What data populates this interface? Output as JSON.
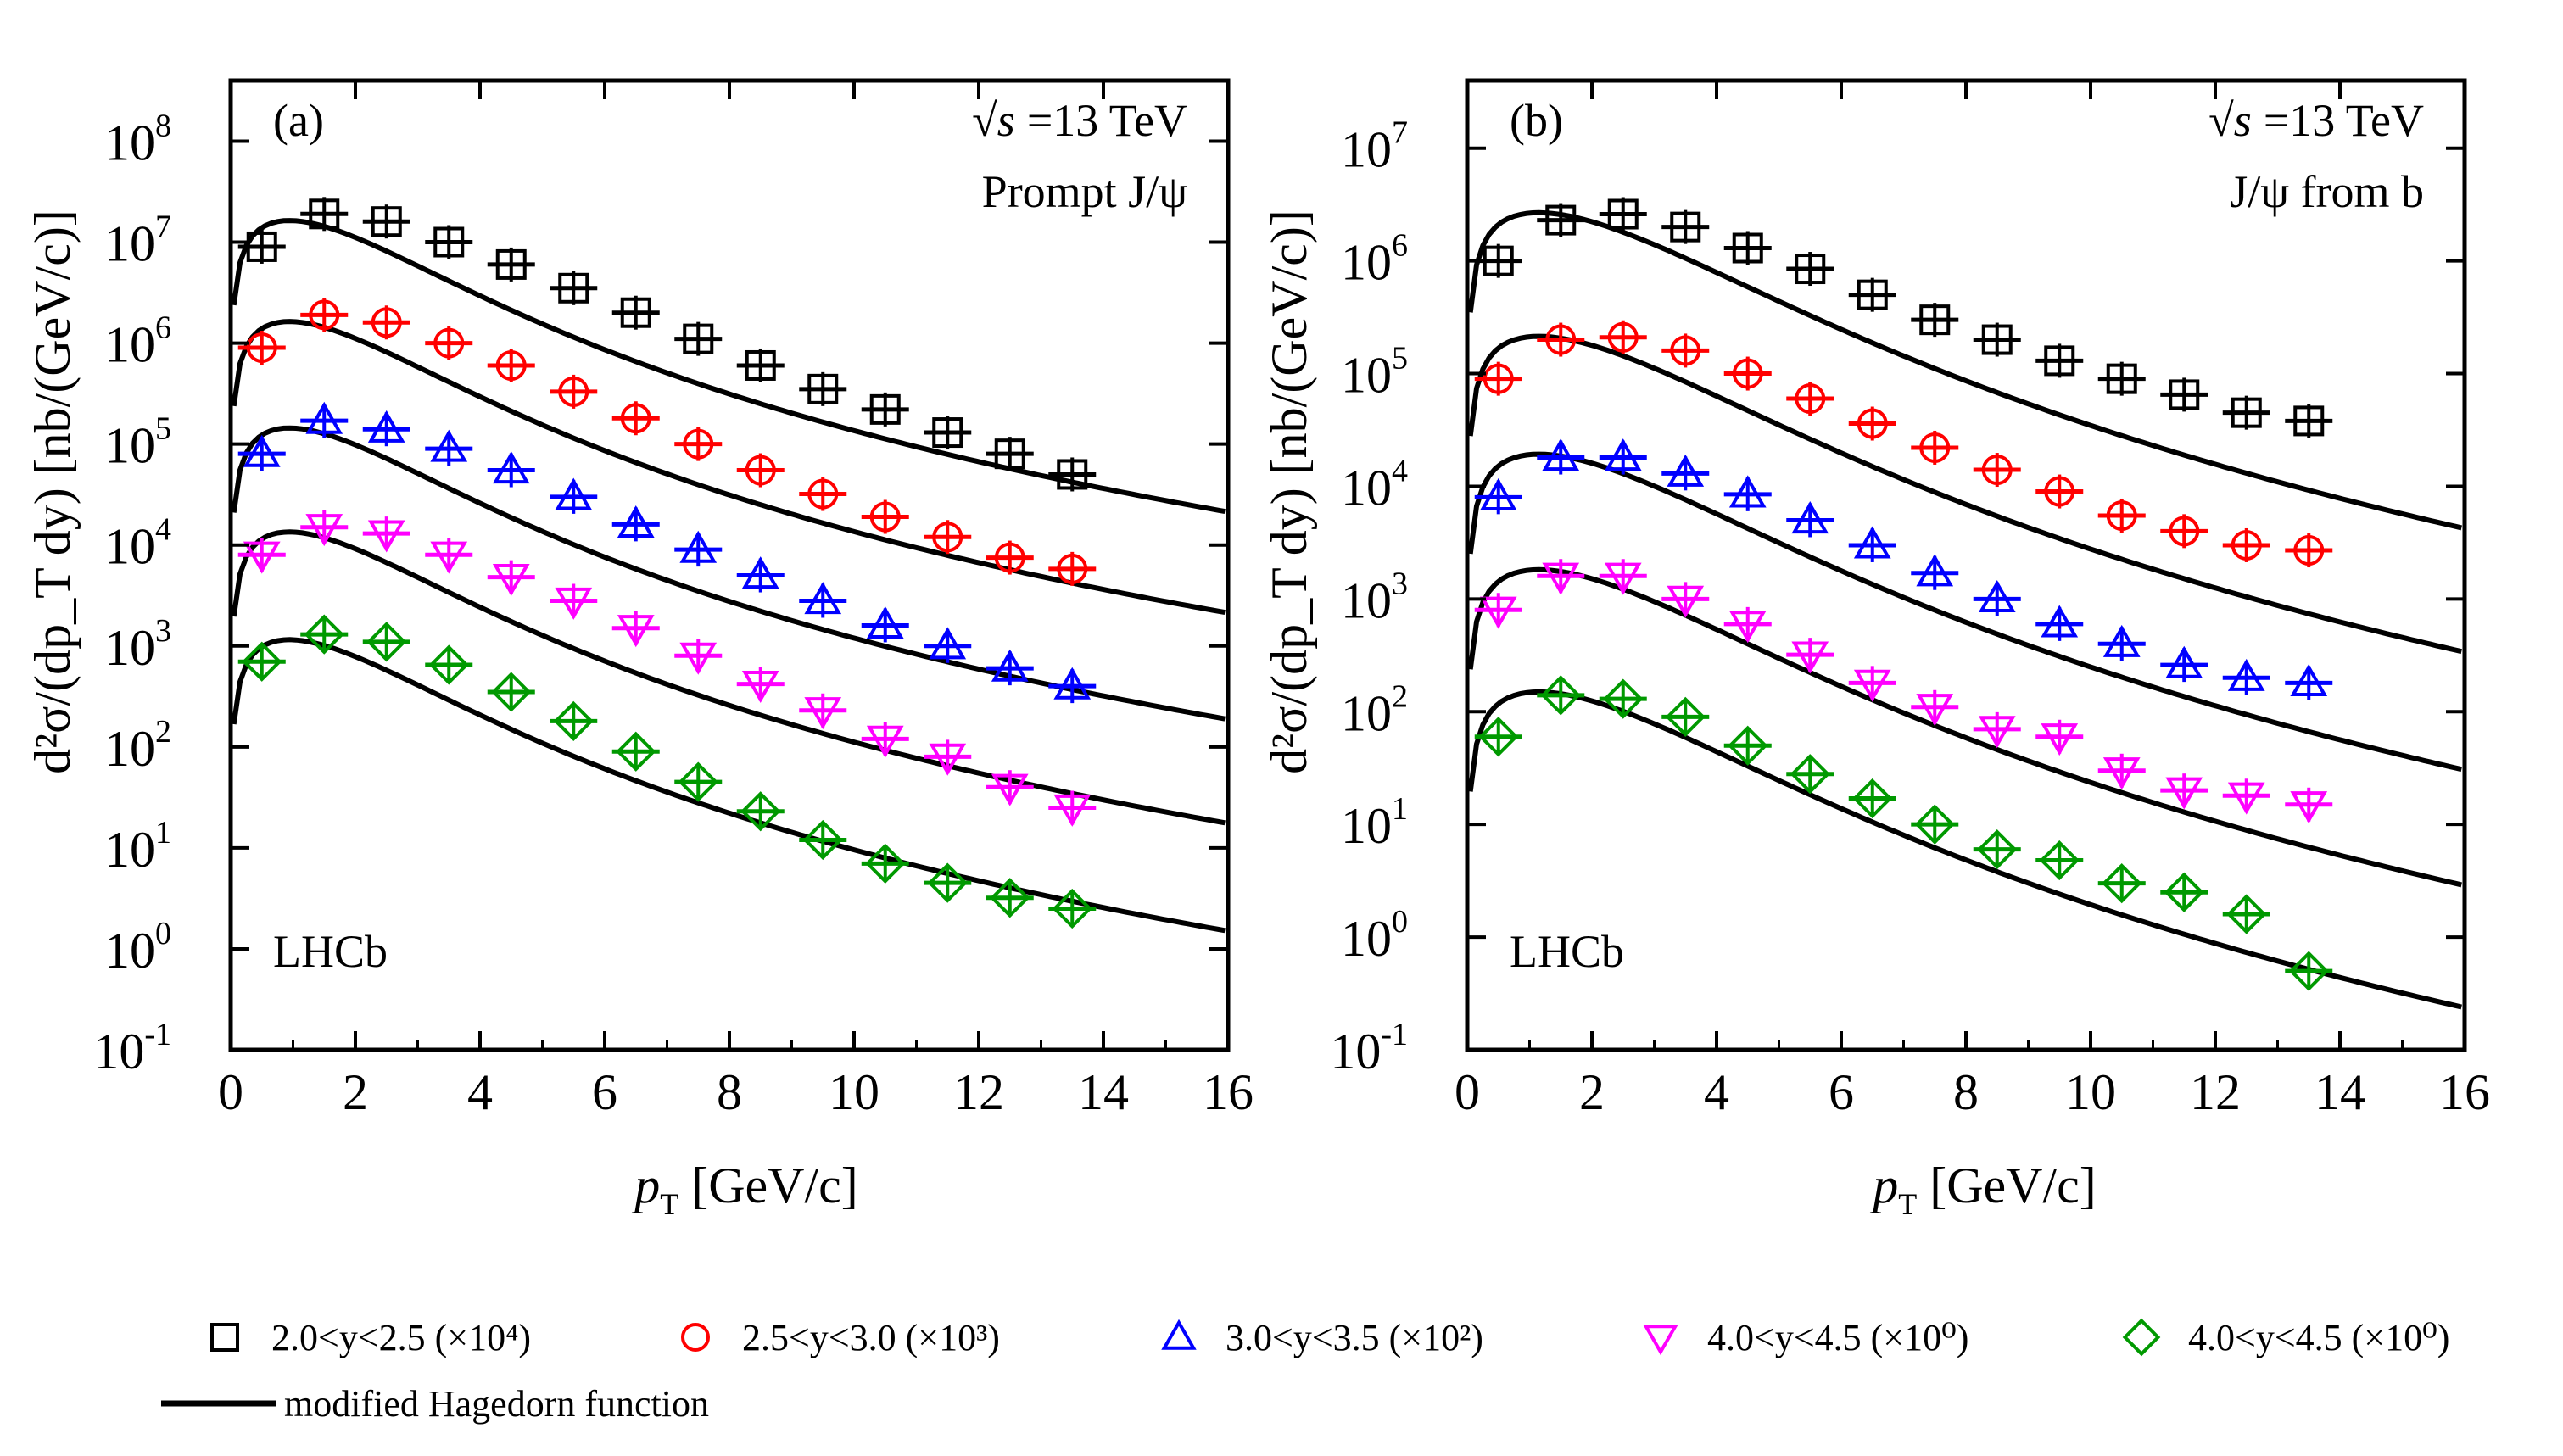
{
  "figure": {
    "legend": {
      "fit_label": "modified Hagedorn function"
    }
  },
  "chart_data": [
    {
      "type": "scatter",
      "panel_label": "(a)",
      "energy_label": "√s =13 TeV",
      "energy_symbol": "√s",
      "energy_value": "=13 TeV",
      "subtitle": "Prompt J/ψ",
      "experiment": "LHCb",
      "xlabel": "p_T [GeV/c]",
      "xlabel_main": "p",
      "xlabel_sub": "T",
      "xlabel_unit": " [GeV/c]",
      "ylabel": "d²σ/(dp_T dy) [nb/(GeV/c)]",
      "xlim": [
        0,
        16
      ],
      "ylim_log10": [
        -1,
        8.6
      ],
      "xticks": [
        0,
        2,
        4,
        6,
        8,
        10,
        12,
        14,
        16
      ],
      "ytick_exponents": [
        -1,
        0,
        1,
        2,
        3,
        4,
        5,
        6,
        7,
        8
      ],
      "x": [
        0.5,
        1.5,
        2.5,
        3.5,
        4.5,
        5.5,
        6.5,
        7.5,
        8.5,
        9.5,
        10.5,
        11.5,
        12.5,
        13.5
      ],
      "series": [
        {
          "name": "2.0<y<2.5 (×10⁴)",
          "color": "#000000",
          "marker": "square",
          "values": [
            9000000,
            19000000,
            16000000,
            10000000,
            6000000,
            3500000,
            2000000,
            1100000,
            600000,
            350000,
            220000,
            130000,
            80000,
            50000
          ],
          "fit": {
            "A": 17000000,
            "pt0": 2.8,
            "n": 4.2
          }
        },
        {
          "name": "2.5<y<3.0 (×10³)",
          "color": "#ff0000",
          "marker": "circle",
          "values": [
            900000,
            1900000,
            1600000,
            1000000,
            600000,
            330000,
            180000,
            100000,
            55000,
            32000,
            19000,
            12000,
            7500,
            5800
          ],
          "fit": {
            "A": 1700000,
            "pt0": 2.8,
            "n": 4.2
          }
        },
        {
          "name": "3.0<y<3.5 (×10²)",
          "color": "#0000ff",
          "marker": "triangle-up",
          "values": [
            80000,
            170000,
            140000,
            90000,
            55000,
            30000,
            16000,
            9000,
            5000,
            2800,
            1600,
            1000,
            600,
            400
          ],
          "fit": {
            "A": 150000,
            "pt0": 2.8,
            "n": 4.2
          }
        },
        {
          "name": "4.0<y<4.5 (×10⁰)",
          "color": "#ff00ff",
          "marker": "triangle-down",
          "values": [
            8000,
            15000,
            13000,
            8000,
            4800,
            2800,
            1500,
            800,
            420,
            230,
            120,
            80,
            40,
            25
          ],
          "fit": {
            "A": 14000,
            "pt0": 2.8,
            "n": 4.2
          }
        },
        {
          "name": "4.0<y<4.5 (×10⁰)",
          "color": "#009900",
          "marker": "diamond",
          "values": [
            700,
            1300,
            1100,
            650,
            350,
            180,
            90,
            45,
            23,
            12,
            7,
            4.5,
            3.2,
            2.5
          ],
          "fit": {
            "A": 1200,
            "pt0": 2.8,
            "n": 4.2
          }
        }
      ]
    },
    {
      "type": "scatter",
      "panel_label": "(b)",
      "energy_label": "√s =13 TeV",
      "energy_symbol": "√s",
      "energy_value": "=13 TeV",
      "subtitle": "J/ψ from b",
      "experiment": "LHCb",
      "xlabel": "p_T [GeV/c]",
      "xlabel_main": "p",
      "xlabel_sub": "T",
      "xlabel_unit": " [GeV/c]",
      "ylabel": "d²σ/(dp_T dy) [nb/(GeV/c)]",
      "xlim": [
        0,
        16
      ],
      "ylim_log10": [
        -1,
        7.6
      ],
      "xticks": [
        0,
        2,
        4,
        6,
        8,
        10,
        12,
        14,
        16
      ],
      "ytick_exponents": [
        -1,
        0,
        1,
        2,
        3,
        4,
        5,
        6,
        7
      ],
      "x": [
        0.5,
        1.5,
        2.5,
        3.5,
        4.5,
        5.5,
        6.5,
        7.5,
        8.5,
        9.5,
        10.5,
        11.5,
        12.5,
        13.5
      ],
      "series": [
        {
          "name": "2.0<y<2.5 (×10⁴)",
          "color": "#000000",
          "marker": "square",
          "values": [
            1000000,
            2300000,
            2600000,
            2000000,
            1300000,
            850000,
            500000,
            300000,
            200000,
            130000,
            90000,
            65000,
            45000,
            38000
          ],
          "fit": {
            "A": 2500000,
            "pt0": 4.0,
            "n": 5.0
          }
        },
        {
          "name": "2.5<y<3.0 (×10³)",
          "color": "#ff0000",
          "marker": "circle",
          "values": [
            90000,
            200000,
            210000,
            160000,
            100000,
            60000,
            36000,
            22000,
            14000,
            9000,
            5500,
            4000,
            3000,
            2700
          ],
          "fit": {
            "A": 200000,
            "pt0": 4.0,
            "n": 5.0
          }
        },
        {
          "name": "3.0<y<3.5 (×10²)",
          "color": "#0000ff",
          "marker": "triangle-up",
          "values": [
            8000,
            18000,
            18000,
            13000,
            8500,
            5000,
            3000,
            1700,
            1000,
            600,
            400,
            260,
            200,
            180
          ],
          "fit": {
            "A": 18000,
            "pt0": 4.0,
            "n": 5.0
          }
        },
        {
          "name": "4.0<y<4.5 (×10⁰)",
          "color": "#ff00ff",
          "marker": "triangle-down",
          "values": [
            800,
            1600,
            1600,
            1000,
            600,
            320,
            180,
            110,
            70,
            60,
            30,
            20,
            18,
            15
          ],
          "fit": {
            "A": 1700,
            "pt0": 4.0,
            "n": 5.0
          }
        },
        {
          "name": "4.0<y<4.5 (×10⁰)",
          "color": "#009900",
          "marker": "diamond",
          "values": [
            60,
            140,
            130,
            90,
            50,
            28,
            17,
            10,
            6,
            4.8,
            3,
            2.5,
            1.6,
            0.5
          ],
          "fit": {
            "A": 140,
            "pt0": 4.0,
            "n": 5.0
          }
        }
      ]
    }
  ]
}
